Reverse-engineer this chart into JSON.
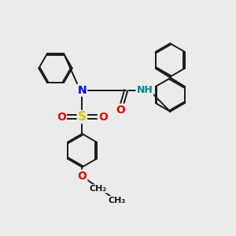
{
  "bg_color": "#ebebeb",
  "bond_color": "#1a1a1a",
  "bond_width": 1.4,
  "atom_colors": {
    "N": "#0000ee",
    "O": "#ee0000",
    "S": "#cccc00",
    "NH": "#008888",
    "C": "#1a1a1a"
  },
  "fig_width": 3.0,
  "fig_height": 3.0,
  "xlim": [
    0,
    10
  ],
  "ylim": [
    0,
    10
  ]
}
